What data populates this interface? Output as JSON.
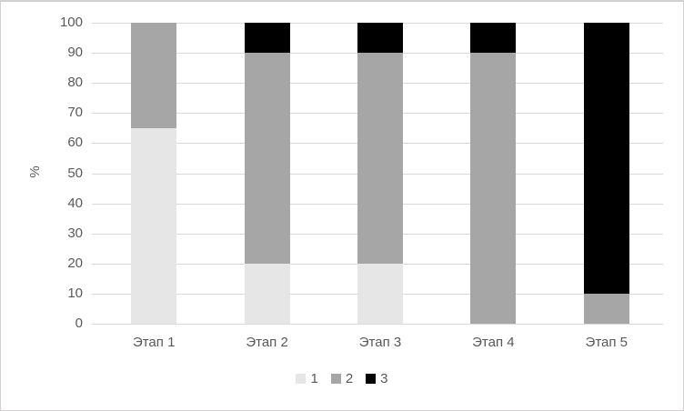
{
  "chart_data": {
    "type": "bar",
    "variant": "stacked-column-100pct",
    "title": "",
    "xlabel": "",
    "ylabel": "%",
    "categories": [
      "Этап 1",
      "Этап 2",
      "Этап 3",
      "Этап 4",
      "Этап 5"
    ],
    "series": [
      {
        "name": "1",
        "color": "#e6e6e6",
        "values": [
          65,
          20,
          20,
          0,
          0
        ]
      },
      {
        "name": "2",
        "color": "#a6a6a6",
        "values": [
          35,
          70,
          70,
          90,
          10
        ]
      },
      {
        "name": "3",
        "color": "#000000",
        "values": [
          0,
          10,
          10,
          10,
          90
        ]
      }
    ],
    "ylim": [
      0,
      100
    ],
    "y_tick_step": 10,
    "y_tick_labels": [
      "0",
      "10",
      "20",
      "30",
      "40",
      "50",
      "60",
      "70",
      "80",
      "90",
      "100"
    ],
    "grid": true,
    "legend_position": "bottom",
    "colors": {
      "gridline": "#d9d9d9",
      "axis_text": "#595959",
      "background": "#ffffff",
      "border": "#d2d0d0"
    }
  }
}
